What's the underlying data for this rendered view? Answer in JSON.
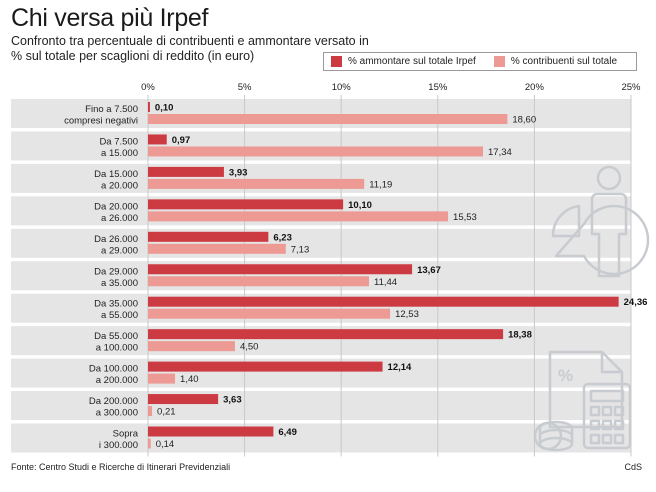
{
  "title": "Chi versa più Irpef",
  "subtitle": "Confronto tra percentuale di contribuenti e ammontare versato in % sul totale per scaglioni di reddito (in euro)",
  "source": "Fonte: Centro Studi e Ricerche di Itinerari Previdenziali",
  "credit": "CdS",
  "colors": {
    "ammontare": "#cd3b42",
    "contribuenti": "#ec9a93",
    "row_band": "#e5e5e5",
    "grid": "#c9c9c9",
    "icon": "#c8ccd1"
  },
  "chart_data": {
    "type": "bar",
    "orientation": "horizontal",
    "xlim": [
      0,
      25
    ],
    "xticks": [
      "0%",
      "5%",
      "10%",
      "15%",
      "20%",
      "25%"
    ],
    "xtick_values": [
      0,
      5,
      10,
      15,
      20,
      25
    ],
    "categories": [
      [
        "Fino a 7.500",
        "compresi negativi"
      ],
      [
        "Da 7.500",
        "a 15.000"
      ],
      [
        "Da 15.000",
        "a 20.000"
      ],
      [
        "Da 20.000",
        "a 26.000"
      ],
      [
        "Da 26.000",
        "a 29.000"
      ],
      [
        "Da 29.000",
        "a 35.000"
      ],
      [
        "Da 35.000",
        "a 55.000"
      ],
      [
        "Da 55.000",
        "a 100.000"
      ],
      [
        "Da 100.000",
        "a 200.000"
      ],
      [
        "Da 200.000",
        "a 300.000"
      ],
      [
        "Sopra",
        "i 300.000"
      ]
    ],
    "series": [
      {
        "name": "% ammontare sul totale Irpef",
        "values": [
          0.1,
          0.97,
          3.93,
          10.1,
          6.23,
          13.67,
          24.36,
          18.38,
          12.14,
          3.63,
          6.49
        ],
        "labels": [
          "0,10",
          "0,97",
          "3,93",
          "10,10",
          "6,23",
          "13,67",
          "24,36",
          "18,38",
          "12,14",
          "3,63",
          "6,49"
        ]
      },
      {
        "name": "% contribuenti sul totale",
        "values": [
          18.6,
          17.34,
          11.19,
          15.53,
          7.13,
          11.44,
          12.53,
          4.5,
          1.4,
          0.21,
          0.14
        ],
        "labels": [
          "18,60",
          "17,34",
          "11,19",
          "15,53",
          "7,13",
          "11,44",
          "12,53",
          "4,50",
          "1,40",
          "0,21",
          "0,14"
        ]
      }
    ]
  }
}
